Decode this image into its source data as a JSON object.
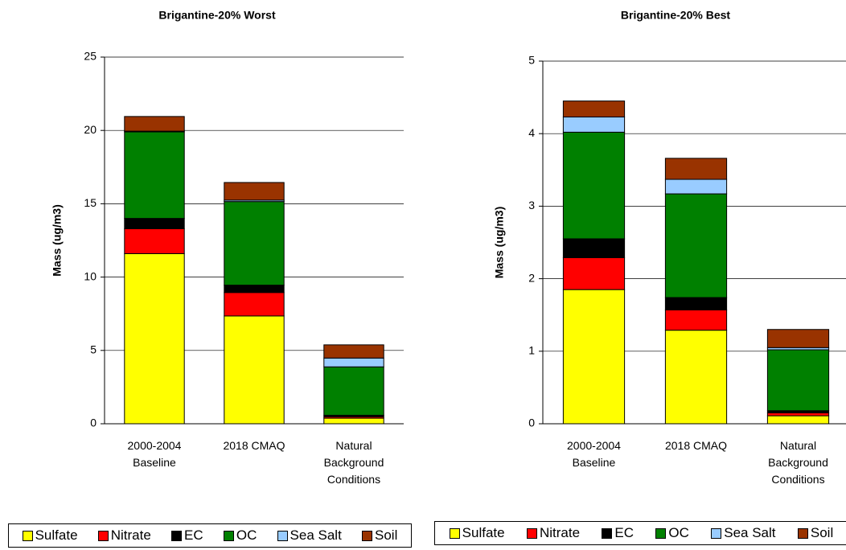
{
  "chart_data": [
    {
      "type": "bar",
      "stacked": true,
      "title": "Brigantine-20% Worst",
      "y_label": "Mass (ug/m3)",
      "categories": [
        "2000-2004 Baseline",
        "2018 CMAQ",
        "Natural Background Conditions"
      ],
      "series": [
        {
          "name": "Sulfate",
          "color": "#ffff00",
          "values": [
            11.6,
            7.35,
            0.38
          ]
        },
        {
          "name": "Nitrate",
          "color": "#ff0000",
          "values": [
            1.7,
            1.6,
            0.1
          ]
        },
        {
          "name": "EC",
          "color": "#000000",
          "values": [
            0.7,
            0.5,
            0.1
          ]
        },
        {
          "name": "OC",
          "color": "#008000",
          "values": [
            5.9,
            5.7,
            3.3
          ]
        },
        {
          "name": "Sea Salt",
          "color": "#99ccff",
          "values": [
            0.05,
            0.1,
            0.6
          ]
        },
        {
          "name": "Soil",
          "color": "#993300",
          "values": [
            1.0,
            1.2,
            0.9
          ]
        }
      ],
      "ylim": [
        0,
        25
      ],
      "yticks": [
        0,
        5,
        10,
        15,
        20,
        25
      ],
      "grid": true
    },
    {
      "type": "bar",
      "stacked": true,
      "title": "Brigantine-20% Best",
      "y_label": "Mass (ug/m3)",
      "categories": [
        "2000-2004 Baseline",
        "2018 CMAQ",
        "Natural Background Conditions"
      ],
      "series": [
        {
          "name": "Sulfate",
          "color": "#ffff00",
          "values": [
            1.85,
            1.29,
            0.11
          ]
        },
        {
          "name": "Nitrate",
          "color": "#ff0000",
          "values": [
            0.44,
            0.28,
            0.04
          ]
        },
        {
          "name": "EC",
          "color": "#000000",
          "values": [
            0.26,
            0.17,
            0.03
          ]
        },
        {
          "name": "OC",
          "color": "#008000",
          "values": [
            1.47,
            1.43,
            0.84
          ]
        },
        {
          "name": "Sea Salt",
          "color": "#99ccff",
          "values": [
            0.21,
            0.2,
            0.03
          ]
        },
        {
          "name": "Soil",
          "color": "#993300",
          "values": [
            0.22,
            0.29,
            0.25
          ]
        }
      ],
      "ylim": [
        0,
        5
      ],
      "yticks": [
        0,
        1,
        2,
        3,
        4,
        5
      ],
      "grid": true
    }
  ]
}
